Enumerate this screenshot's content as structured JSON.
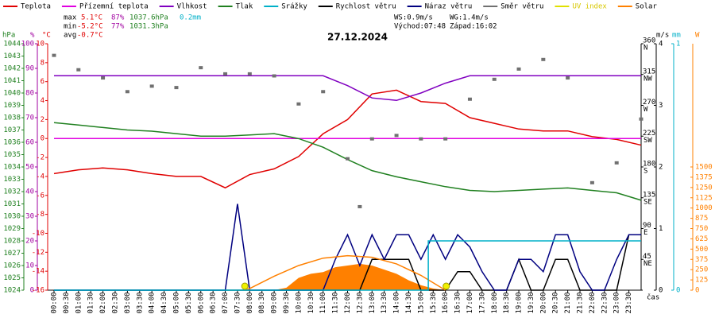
{
  "chart_data": {
    "type": "line",
    "title": "27.12.2024",
    "x_label": "čas",
    "xlim": [
      0,
      24
    ],
    "xticks": [
      {
        "value": 0,
        "label": "00:00"
      },
      {
        "value": 0.5,
        "label": "00:30"
      },
      {
        "value": 1,
        "label": "01:00"
      },
      {
        "value": 1.5,
        "label": "01:30"
      },
      {
        "value": 2,
        "label": "02:00"
      },
      {
        "value": 2.5,
        "label": "02:30"
      },
      {
        "value": 3,
        "label": "03:00"
      },
      {
        "value": 3.5,
        "label": "03:30"
      },
      {
        "value": 4,
        "label": "04:00"
      },
      {
        "value": 4.5,
        "label": "04:30"
      },
      {
        "value": 5,
        "label": "05:00"
      },
      {
        "value": 5.5,
        "label": "05:30"
      },
      {
        "value": 6,
        "label": "06:00"
      },
      {
        "value": 6.5,
        "label": "06:30"
      },
      {
        "value": 7,
        "label": "07:00"
      },
      {
        "value": 7.5,
        "label": "07:30"
      },
      {
        "value": 8,
        "label": "08:00"
      },
      {
        "value": 8.5,
        "label": "08:30"
      },
      {
        "value": 9,
        "label": "09:00"
      },
      {
        "value": 9.5,
        "label": "09:30"
      },
      {
        "value": 10,
        "label": "10:00"
      },
      {
        "value": 10.5,
        "label": "10:30"
      },
      {
        "value": 11,
        "label": "11:00"
      },
      {
        "value": 11.5,
        "label": "11:30"
      },
      {
        "value": 12,
        "label": "12:00"
      },
      {
        "value": 12.5,
        "label": "12:30"
      },
      {
        "value": 13,
        "label": "13:00"
      },
      {
        "value": 13.5,
        "label": "13:30"
      },
      {
        "value": 14,
        "label": "14:00"
      },
      {
        "value": 14.5,
        "label": "14:30"
      },
      {
        "value": 15,
        "label": "15:00"
      },
      {
        "value": 15.5,
        "label": "15:30"
      },
      {
        "value": 16,
        "label": "16:00"
      },
      {
        "value": 16.5,
        "label": "16:30"
      },
      {
        "value": 17,
        "label": "17:00"
      },
      {
        "value": 17.5,
        "label": "17:30"
      },
      {
        "value": 18,
        "label": "18:00"
      },
      {
        "value": 18.5,
        "label": "18:30"
      },
      {
        "value": 19,
        "label": "19:00"
      },
      {
        "value": 19.5,
        "label": "19:30"
      },
      {
        "value": 20,
        "label": "20:00"
      },
      {
        "value": 20.5,
        "label": "20:30"
      },
      {
        "value": 21,
        "label": "21:00"
      },
      {
        "value": 21.5,
        "label": "21:30"
      },
      {
        "value": 22,
        "label": "22:00"
      },
      {
        "value": 22.5,
        "label": "22:30"
      },
      {
        "value": 23,
        "label": "23:00"
      },
      {
        "value": 23.5,
        "label": "23:30"
      }
    ],
    "axes": {
      "pressure": {
        "label": "hPa",
        "color": "#208020",
        "lim": [
          1024,
          1044
        ],
        "ticks": [
          1024,
          1025,
          1026,
          1027,
          1028,
          1029,
          1030,
          1031,
          1032,
          1033,
          1034,
          1035,
          1036,
          1037,
          1038,
          1039,
          1040,
          1041,
          1042,
          1043,
          1044
        ]
      },
      "humidity": {
        "label": "%",
        "color": "#a000a0",
        "lim": [
          0,
          100
        ],
        "ticks": [
          0,
          10,
          20,
          30,
          40,
          50,
          60,
          70,
          80,
          90,
          100
        ]
      },
      "temp": {
        "label": "°C",
        "color": "#e00000",
        "lim": [
          -16,
          10
        ],
        "ticks": [
          -16,
          -14,
          -12,
          -10,
          -8,
          -6,
          -4,
          -2,
          0,
          2,
          4,
          6,
          8,
          10
        ]
      },
      "direction": {
        "color": "#000000",
        "lim": [
          0,
          360
        ],
        "ticks": [
          {
            "value": 45,
            "label": "NE"
          },
          {
            "value": 90,
            "label": "E"
          },
          {
            "value": 135,
            "label": "SE"
          },
          {
            "value": 180,
            "label": "S"
          },
          {
            "value": 225,
            "label": "SW"
          },
          {
            "value": 270,
            "label": "W"
          },
          {
            "value": 315,
            "label": "NW"
          },
          {
            "value": 360,
            "label": "N"
          }
        ]
      },
      "wind": {
        "label": "m/s",
        "color": "#000000",
        "lim": [
          0,
          4
        ],
        "ticks": [
          0,
          1,
          2,
          3,
          4
        ]
      },
      "rain": {
        "label": "mm",
        "color": "#00b0c8",
        "lim": [
          0,
          1
        ],
        "ticks": [
          0,
          1
        ]
      },
      "solar": {
        "label": "W",
        "color": "#ff8000",
        "lim": [
          0,
          3000
        ],
        "ticks": [
          0,
          125,
          250,
          375,
          500,
          625,
          750,
          875,
          1000,
          1125,
          1250,
          1375,
          1500
        ]
      }
    },
    "series": [
      {
        "name": "Teplota",
        "color": "#e00000",
        "axis": "temp",
        "kind": "line",
        "x": [
          0,
          1,
          2,
          3,
          4,
          5,
          6,
          7,
          8,
          9,
          10,
          11,
          12,
          13,
          14,
          15,
          16,
          17,
          18,
          19,
          20,
          21,
          22,
          23,
          24
        ],
        "values": [
          -3.7,
          -3.3,
          -3.1,
          -3.3,
          -3.7,
          -4.0,
          -4.0,
          -5.2,
          -3.8,
          -3.2,
          -1.9,
          0.5,
          2.0,
          4.7,
          5.1,
          3.9,
          3.7,
          2.2,
          1.6,
          1.0,
          0.8,
          0.8,
          0.2,
          -0.1,
          -0.7
        ]
      },
      {
        "name": "Přízemní teplota",
        "color": "#e000e0",
        "axis": "temp",
        "kind": "line",
        "x": [
          0,
          24
        ],
        "values": [
          0,
          0
        ]
      },
      {
        "name": "Vlhkost",
        "color": "#8000c0",
        "axis": "humidity",
        "kind": "line",
        "x": [
          0,
          1,
          2,
          3,
          4,
          5,
          6,
          7,
          8,
          9,
          10,
          11,
          12,
          13,
          14,
          15,
          16,
          17,
          18,
          19,
          20,
          21,
          22,
          23,
          24
        ],
        "values": [
          87,
          87,
          87,
          87,
          87,
          87,
          87,
          87,
          87,
          87,
          87,
          87,
          83,
          78,
          77,
          80,
          84,
          87,
          87,
          87,
          87,
          87,
          87,
          87,
          87
        ]
      },
      {
        "name": "Tlak",
        "color": "#208020",
        "axis": "pressure",
        "kind": "line",
        "x": [
          0,
          1,
          2,
          3,
          4,
          5,
          6,
          7,
          8,
          9,
          10,
          11,
          12,
          13,
          14,
          15,
          16,
          17,
          18,
          19,
          20,
          21,
          22,
          23,
          24
        ],
        "values": [
          1037.6,
          1037.4,
          1037.2,
          1037.0,
          1036.9,
          1036.7,
          1036.5,
          1036.5,
          1036.6,
          1036.7,
          1036.3,
          1035.6,
          1034.6,
          1033.7,
          1033.2,
          1032.8,
          1032.4,
          1032.1,
          1032.0,
          1032.1,
          1032.2,
          1032.3,
          1032.1,
          1031.9,
          1031.3
        ]
      },
      {
        "name": "Srážky",
        "color": "#00b0c8",
        "axis": "rain",
        "kind": "step",
        "x": [
          0,
          15.3,
          24
        ],
        "values": [
          0,
          0.2,
          0.2
        ]
      },
      {
        "name": "Rychlost větru",
        "color": "#000000",
        "axis": "wind",
        "kind": "line",
        "x": [
          0,
          0.5,
          1,
          1.5,
          2,
          2.5,
          3,
          3.5,
          4,
          4.5,
          5,
          5.5,
          6,
          6.5,
          7,
          7.5,
          8,
          8.5,
          9,
          9.5,
          10,
          10.5,
          11,
          11.5,
          12,
          12.5,
          13,
          13.5,
          14,
          14.5,
          15,
          15.5,
          16,
          16.5,
          17,
          17.5,
          18,
          18.5,
          19,
          19.5,
          20,
          20.5,
          21,
          21.5,
          22,
          22.5,
          23,
          23.5,
          24
        ],
        "values": [
          0,
          0,
          0,
          0,
          0,
          0,
          0,
          0,
          0,
          0,
          0,
          0,
          0,
          0,
          0,
          0,
          0,
          0,
          0,
          0,
          0,
          0,
          0,
          0,
          0,
          0,
          0.5,
          0.5,
          0.5,
          0.5,
          0,
          0,
          0,
          0.3,
          0.3,
          0,
          0,
          0,
          0.5,
          0,
          0,
          0.5,
          0.5,
          0,
          0,
          0,
          0,
          0.9,
          0.9
        ]
      },
      {
        "name": "Náraz větru",
        "color": "#000080",
        "axis": "wind",
        "kind": "line",
        "x": [
          0,
          0.5,
          1,
          1.5,
          2,
          2.5,
          3,
          3.5,
          4,
          4.5,
          5,
          5.5,
          6,
          6.5,
          7,
          7.5,
          8,
          8.5,
          9,
          9.5,
          10,
          10.5,
          11,
          11.5,
          12,
          12.5,
          13,
          13.5,
          14,
          14.5,
          15,
          15.5,
          16,
          16.5,
          17,
          17.5,
          18,
          18.5,
          19,
          19.5,
          20,
          20.5,
          21,
          21.5,
          22,
          22.5,
          23,
          23.5,
          24
        ],
        "values": [
          0,
          0,
          0,
          0,
          0,
          0,
          0,
          0,
          0,
          0,
          0,
          0,
          0,
          0,
          0,
          1.4,
          0,
          0,
          0,
          0,
          0,
          0,
          0,
          0.5,
          0.9,
          0.4,
          0.9,
          0.5,
          0.9,
          0.9,
          0.5,
          0.9,
          0.5,
          0.9,
          0.7,
          0.3,
          0,
          0,
          0.5,
          0.5,
          0.3,
          0.9,
          0.9,
          0.3,
          0,
          0,
          0.5,
          0.9,
          0.9
        ]
      },
      {
        "name": "Směr větru",
        "color": "#707070",
        "axis": "direction",
        "kind": "scatter",
        "x": [
          0,
          1,
          2,
          3,
          4,
          5,
          6,
          7,
          8,
          9,
          10,
          11,
          12,
          12.5,
          13,
          14,
          15,
          16,
          17,
          18,
          19,
          20,
          21,
          22,
          23,
          24
        ],
        "values": [
          343,
          322,
          310,
          290,
          298,
          296,
          325,
          316,
          316,
          313,
          272,
          290,
          192,
          122,
          221,
          226,
          221,
          221,
          279,
          308,
          323,
          337,
          310,
          157,
          186,
          250
        ]
      },
      {
        "name": "UV index",
        "color": "#e0e000",
        "axis": "solar",
        "kind": "line",
        "x": [],
        "values": []
      },
      {
        "name": "Solar",
        "color": "#ff8000",
        "axis": "solar",
        "kind": "area",
        "x": [
          9,
          9.5,
          10,
          10.5,
          11,
          11.5,
          12,
          12.5,
          13,
          13.5,
          14,
          14.5,
          15,
          15.5,
          16
        ],
        "values": [
          0,
          30,
          150,
          200,
          220,
          280,
          300,
          320,
          300,
          250,
          200,
          120,
          60,
          20,
          0
        ]
      },
      {
        "color": "#ff8000",
        "axis": "solar",
        "kind": "line",
        "x": [
          7.8,
          8,
          9,
          10,
          11,
          12,
          13,
          14,
          15,
          16
        ],
        "values": [
          0,
          20,
          170,
          300,
          390,
          420,
          400,
          320,
          180,
          0
        ]
      }
    ],
    "stats": {
      "max": {
        "label": "max",
        "temp": "5.1°C",
        "humidity": "87%",
        "pressure": "1037.6hPa",
        "rain": "0.2mm"
      },
      "min": {
        "label": "min",
        "temp": "-5.2°C",
        "humidity": "77%",
        "pressure": "1031.3hPa"
      },
      "avg": {
        "label": "avg",
        "temp": "-0.7°C"
      }
    },
    "wind_stats": {
      "ws": "WS:0.9m/s",
      "wg": "WG:1.4m/s"
    },
    "sun": {
      "sunrise": {
        "value": 7.8,
        "label": "Východ:07:48"
      },
      "sunset": {
        "value": 16.033,
        "label": "Západ:16:02"
      }
    }
  }
}
